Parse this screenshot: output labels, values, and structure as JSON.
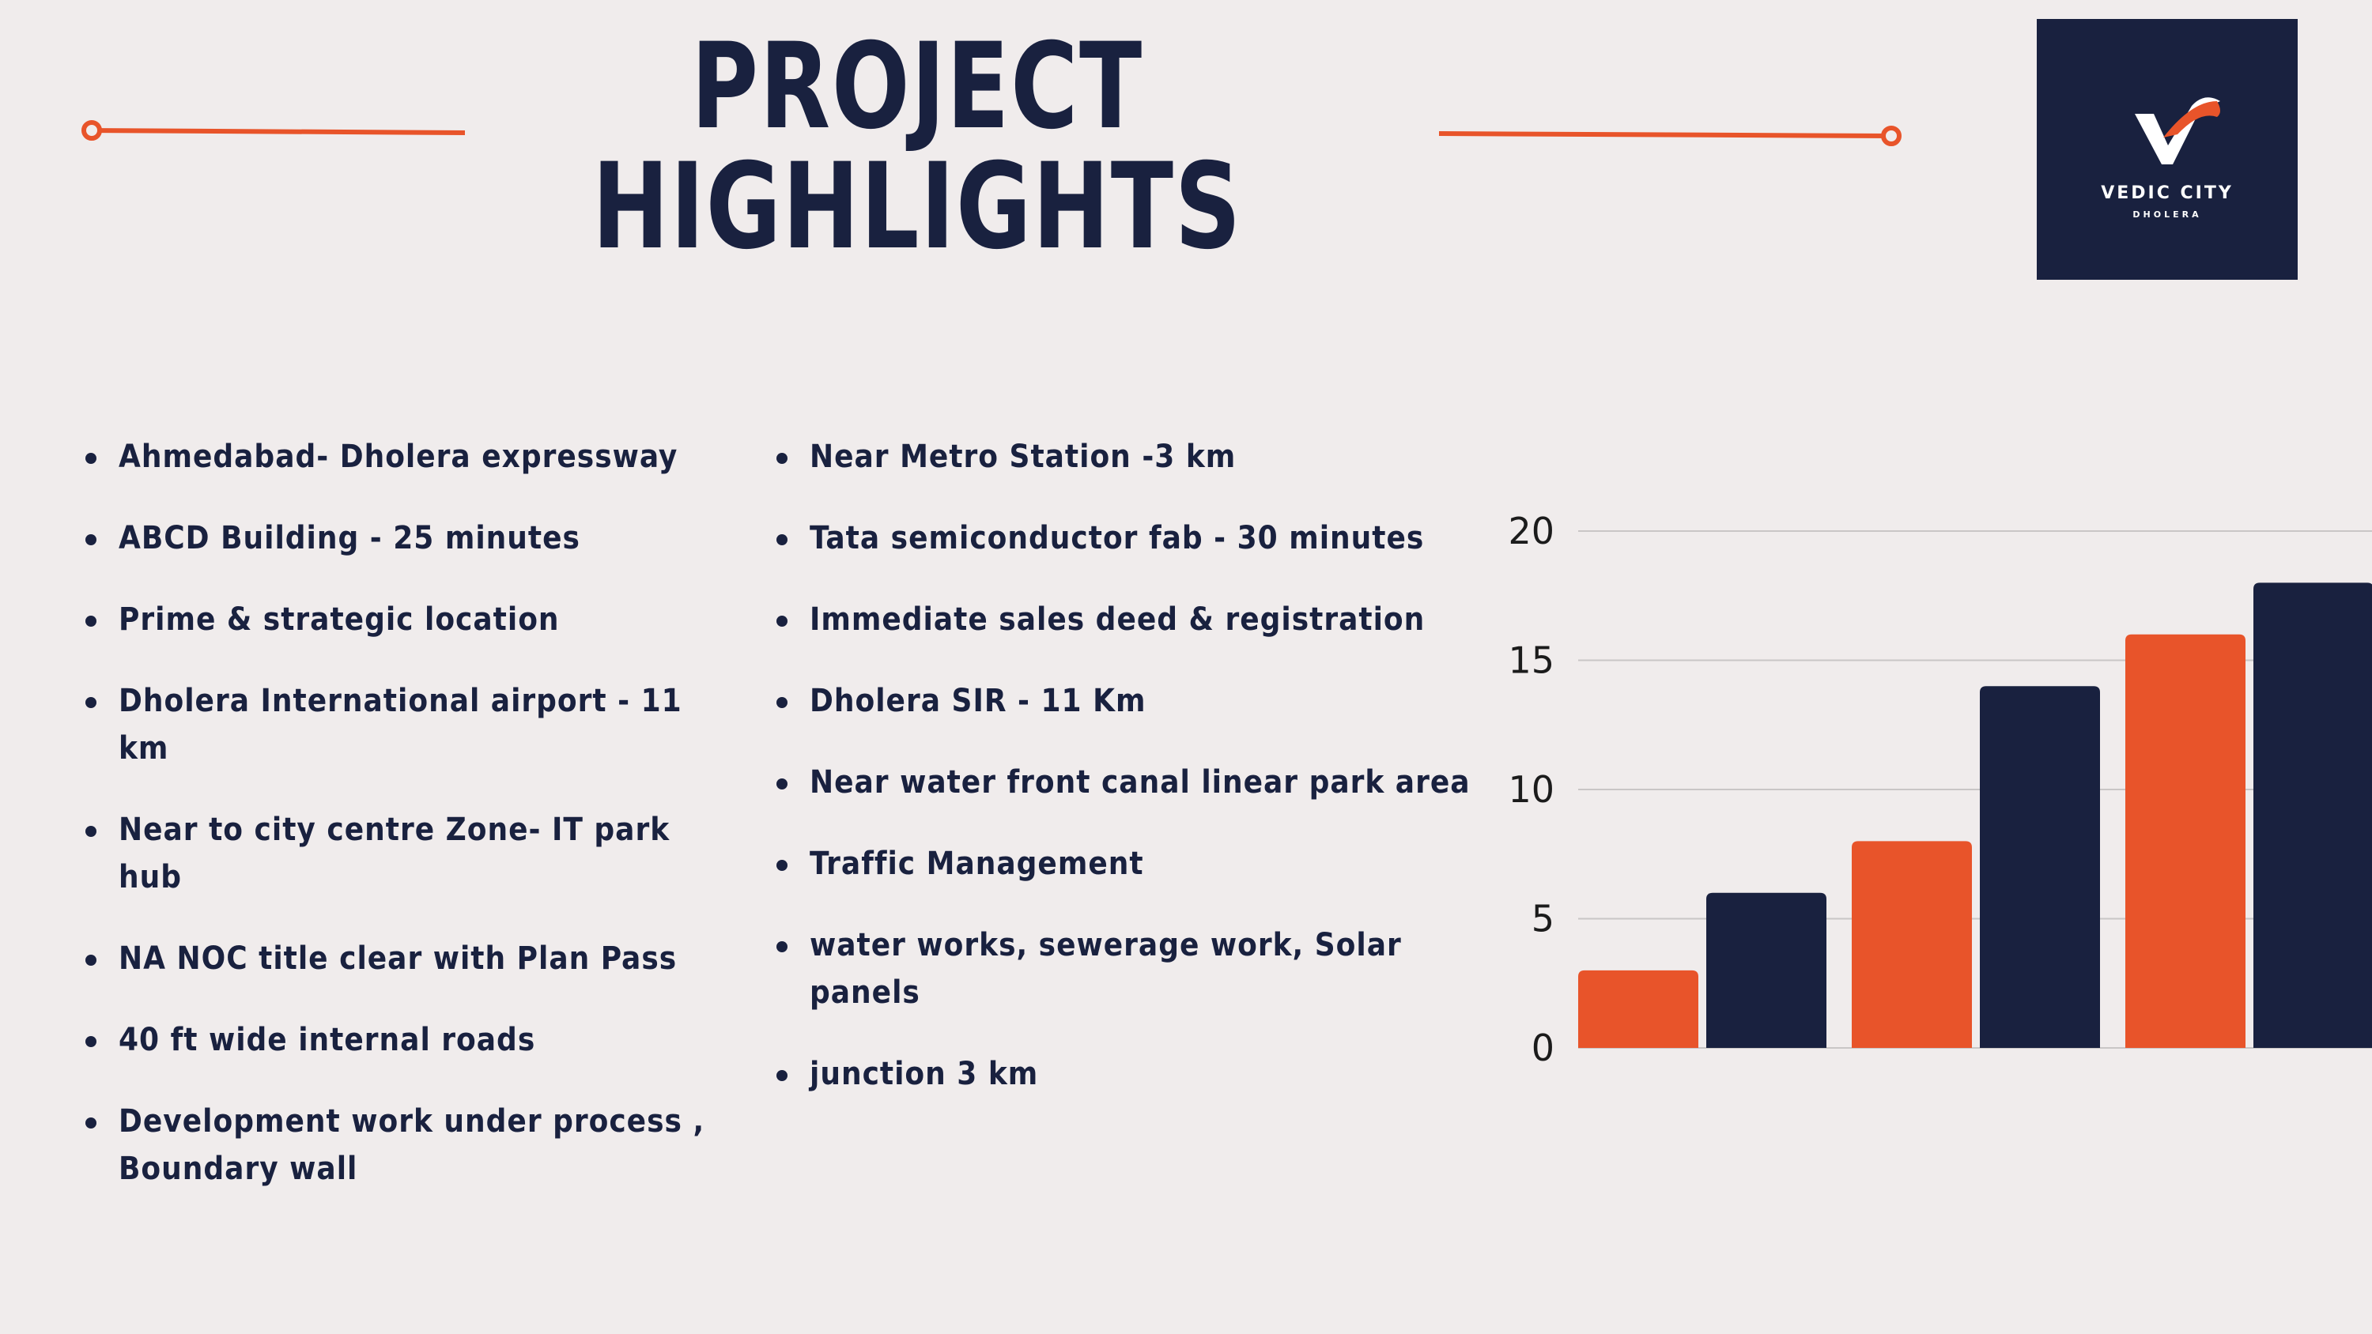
{
  "title": {
    "line1": "PROJECT",
    "line2": "HIGHLIGHTS"
  },
  "logo": {
    "name": "VEDIC CITY",
    "sub": "DHOLERA",
    "icon": "check-mark-icon",
    "background": "#19213f"
  },
  "colors": {
    "accent": "#e8542a",
    "navy": "#19213f",
    "background": "#f0ecec"
  },
  "highlights_left": [
    "Ahmedabad- Dholera expressway",
    "ABCD Building - 25 minutes",
    "Prime & strategic location",
    "Dholera International airport - 11 km",
    "Near to city centre Zone- IT park hub",
    "NA NOC title clear with Plan Pass",
    "40 ft wide internal roads",
    "Development work under process , Boundary wall"
  ],
  "highlights_right": [
    "Near Metro Station -3 km",
    "Tata semiconductor fab - 30 minutes",
    "Immediate sales deed & registration",
    "Dholera SIR - 11 Km",
    "Near water front canal linear park area",
    "Traffic Management",
    "water works, sewerage work, Solar panels",
    "junction 3 km"
  ],
  "chart_data": {
    "type": "bar",
    "categories": [
      "",
      "",
      ""
    ],
    "series": [
      {
        "color": "#e8542a",
        "values": [
          3,
          8,
          16
        ]
      },
      {
        "color": "#19213f",
        "values": [
          6,
          14,
          18
        ]
      }
    ],
    "ylim": [
      0,
      20
    ],
    "yticks": [
      "0",
      "5",
      "10",
      "15",
      "20"
    ],
    "grid": true,
    "title": "",
    "xlabel": "",
    "ylabel": ""
  }
}
